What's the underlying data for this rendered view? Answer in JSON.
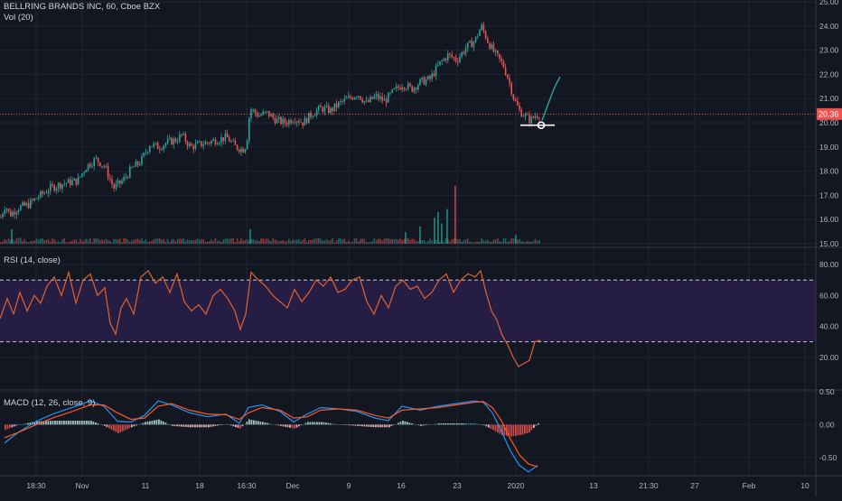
{
  "header": {
    "symbol_title": "BELLRING BRANDS INC, 60, Cboe BZX",
    "volume_label": "Vol (20)",
    "rsi_label": "RSI (14, close)",
    "macd_label": "MACD (12, 26, close, 9)"
  },
  "price_badge": {
    "value": "20.36",
    "color": "#ef5350"
  },
  "colors": {
    "up": "#26a69a",
    "down": "#ef5350",
    "background": "#131722",
    "rsi_line": "#e0632f",
    "rsi_band": "#2a1e4a",
    "macd_line": "#2196f3",
    "signal_line": "#ff5722",
    "grid": "#1f2433",
    "drawing": "#26a69a"
  },
  "chart_data": [
    {
      "type": "candlestick",
      "title": "BELLRING BRANDS INC, 60, Cboe BZX",
      "ylim": [
        15,
        25
      ],
      "y_ticks": [
        "25.00",
        "24.00",
        "23.00",
        "22.00",
        "21.00",
        "20.00",
        "19.00",
        "18.00",
        "17.00",
        "16.00",
        "15.00"
      ],
      "close_anchors": [
        {
          "x": 0,
          "y": 16.1
        },
        {
          "x": 5,
          "y": 16.6
        },
        {
          "x": 10,
          "y": 16.2
        },
        {
          "x": 20,
          "y": 16.5
        },
        {
          "x": 30,
          "y": 16.6
        },
        {
          "x": 40,
          "y": 16.9
        },
        {
          "x": 55,
          "y": 17.3
        },
        {
          "x": 70,
          "y": 17.5
        },
        {
          "x": 85,
          "y": 17.6
        },
        {
          "x": 95,
          "y": 18.2
        },
        {
          "x": 105,
          "y": 18.5
        },
        {
          "x": 115,
          "y": 18.2
        },
        {
          "x": 125,
          "y": 17.3
        },
        {
          "x": 135,
          "y": 17.6
        },
        {
          "x": 145,
          "y": 18.1
        },
        {
          "x": 155,
          "y": 18.4
        },
        {
          "x": 165,
          "y": 19.1
        },
        {
          "x": 175,
          "y": 19.0
        },
        {
          "x": 185,
          "y": 19.2
        },
        {
          "x": 195,
          "y": 19.3
        },
        {
          "x": 200,
          "y": 19.5
        },
        {
          "x": 210,
          "y": 19.0
        },
        {
          "x": 220,
          "y": 19.1
        },
        {
          "x": 230,
          "y": 19.2
        },
        {
          "x": 240,
          "y": 19.3
        },
        {
          "x": 250,
          "y": 19.4
        },
        {
          "x": 260,
          "y": 19.0
        },
        {
          "x": 268,
          "y": 18.9
        },
        {
          "x": 272,
          "y": 19.1
        },
        {
          "x": 276,
          "y": 20.6
        },
        {
          "x": 285,
          "y": 20.3
        },
        {
          "x": 295,
          "y": 20.4
        },
        {
          "x": 305,
          "y": 20.1
        },
        {
          "x": 315,
          "y": 20.0
        },
        {
          "x": 325,
          "y": 20.2
        },
        {
          "x": 335,
          "y": 20.0
        },
        {
          "x": 345,
          "y": 20.4
        },
        {
          "x": 355,
          "y": 20.6
        },
        {
          "x": 365,
          "y": 20.5
        },
        {
          "x": 375,
          "y": 20.8
        },
        {
          "x": 385,
          "y": 21.0
        },
        {
          "x": 395,
          "y": 21.2
        },
        {
          "x": 405,
          "y": 20.8
        },
        {
          "x": 415,
          "y": 21.1
        },
        {
          "x": 425,
          "y": 20.9
        },
        {
          "x": 435,
          "y": 21.3
        },
        {
          "x": 445,
          "y": 21.6
        },
        {
          "x": 455,
          "y": 21.4
        },
        {
          "x": 465,
          "y": 21.7
        },
        {
          "x": 475,
          "y": 21.8
        },
        {
          "x": 485,
          "y": 22.4
        },
        {
          "x": 495,
          "y": 22.8
        },
        {
          "x": 505,
          "y": 22.6
        },
        {
          "x": 515,
          "y": 23.1
        },
        {
          "x": 525,
          "y": 23.4
        },
        {
          "x": 532,
          "y": 24.0
        },
        {
          "x": 540,
          "y": 23.3
        },
        {
          "x": 548,
          "y": 22.8
        },
        {
          "x": 556,
          "y": 22.4
        },
        {
          "x": 562,
          "y": 21.8
        },
        {
          "x": 568,
          "y": 21.0
        },
        {
          "x": 574,
          "y": 20.5
        },
        {
          "x": 580,
          "y": 20.3
        },
        {
          "x": 586,
          "y": 20.1
        },
        {
          "x": 592,
          "y": 20.3
        },
        {
          "x": 598,
          "y": 20.36
        }
      ]
    },
    {
      "type": "bar",
      "title": "Vol (20)",
      "spikes": [
        {
          "x": 480,
          "h": 0.45
        },
        {
          "x": 484,
          "h": 0.55
        },
        {
          "x": 488,
          "h": 0.35
        },
        {
          "x": 494,
          "h": 0.6
        },
        {
          "x": 503,
          "h": 1.0
        },
        {
          "x": 464,
          "h": 0.3
        },
        {
          "x": 448,
          "h": 0.2
        },
        {
          "x": 570,
          "h": 0.15
        },
        {
          "x": 12,
          "h": 0.25
        },
        {
          "x": 276,
          "h": 0.25
        }
      ]
    },
    {
      "type": "line",
      "title": "RSI (14, close)",
      "ylim": [
        0,
        90
      ],
      "y_ticks": [
        "80.00",
        "60.00",
        "40.00",
        "20.00"
      ],
      "overbought": 70,
      "oversold": 30,
      "points": [
        {
          "x": 0,
          "y": 45
        },
        {
          "x": 8,
          "y": 58
        },
        {
          "x": 15,
          "y": 48
        },
        {
          "x": 22,
          "y": 62
        },
        {
          "x": 30,
          "y": 50
        },
        {
          "x": 38,
          "y": 60
        },
        {
          "x": 45,
          "y": 55
        },
        {
          "x": 52,
          "y": 66
        },
        {
          "x": 60,
          "y": 72
        },
        {
          "x": 68,
          "y": 60
        },
        {
          "x": 76,
          "y": 75
        },
        {
          "x": 84,
          "y": 55
        },
        {
          "x": 92,
          "y": 70
        },
        {
          "x": 100,
          "y": 74
        },
        {
          "x": 108,
          "y": 60
        },
        {
          "x": 116,
          "y": 65
        },
        {
          "x": 122,
          "y": 42
        },
        {
          "x": 128,
          "y": 35
        },
        {
          "x": 134,
          "y": 52
        },
        {
          "x": 140,
          "y": 58
        },
        {
          "x": 148,
          "y": 48
        },
        {
          "x": 156,
          "y": 72
        },
        {
          "x": 164,
          "y": 76
        },
        {
          "x": 172,
          "y": 68
        },
        {
          "x": 180,
          "y": 72
        },
        {
          "x": 188,
          "y": 62
        },
        {
          "x": 196,
          "y": 74
        },
        {
          "x": 204,
          "y": 56
        },
        {
          "x": 212,
          "y": 50
        },
        {
          "x": 220,
          "y": 54
        },
        {
          "x": 228,
          "y": 48
        },
        {
          "x": 236,
          "y": 60
        },
        {
          "x": 244,
          "y": 64
        },
        {
          "x": 252,
          "y": 58
        },
        {
          "x": 260,
          "y": 50
        },
        {
          "x": 266,
          "y": 38
        },
        {
          "x": 272,
          "y": 48
        },
        {
          "x": 278,
          "y": 75
        },
        {
          "x": 286,
          "y": 70
        },
        {
          "x": 294,
          "y": 66
        },
        {
          "x": 302,
          "y": 60
        },
        {
          "x": 310,
          "y": 56
        },
        {
          "x": 318,
          "y": 52
        },
        {
          "x": 326,
          "y": 64
        },
        {
          "x": 334,
          "y": 56
        },
        {
          "x": 342,
          "y": 62
        },
        {
          "x": 350,
          "y": 70
        },
        {
          "x": 358,
          "y": 66
        },
        {
          "x": 366,
          "y": 72
        },
        {
          "x": 374,
          "y": 62
        },
        {
          "x": 382,
          "y": 64
        },
        {
          "x": 390,
          "y": 70
        },
        {
          "x": 398,
          "y": 72
        },
        {
          "x": 406,
          "y": 56
        },
        {
          "x": 414,
          "y": 48
        },
        {
          "x": 422,
          "y": 60
        },
        {
          "x": 430,
          "y": 52
        },
        {
          "x": 438,
          "y": 66
        },
        {
          "x": 446,
          "y": 70
        },
        {
          "x": 454,
          "y": 64
        },
        {
          "x": 462,
          "y": 66
        },
        {
          "x": 470,
          "y": 58
        },
        {
          "x": 478,
          "y": 62
        },
        {
          "x": 486,
          "y": 70
        },
        {
          "x": 494,
          "y": 74
        },
        {
          "x": 502,
          "y": 62
        },
        {
          "x": 510,
          "y": 70
        },
        {
          "x": 518,
          "y": 74
        },
        {
          "x": 526,
          "y": 72
        },
        {
          "x": 532,
          "y": 76
        },
        {
          "x": 538,
          "y": 62
        },
        {
          "x": 544,
          "y": 50
        },
        {
          "x": 550,
          "y": 44
        },
        {
          "x": 556,
          "y": 34
        },
        {
          "x": 562,
          "y": 28
        },
        {
          "x": 568,
          "y": 20
        },
        {
          "x": 574,
          "y": 14
        },
        {
          "x": 580,
          "y": 16
        },
        {
          "x": 586,
          "y": 18
        },
        {
          "x": 592,
          "y": 30
        },
        {
          "x": 598,
          "y": 31
        }
      ]
    },
    {
      "type": "line",
      "title": "MACD (12, 26, close, 9)",
      "ylim": [
        -0.75,
        0.5
      ],
      "y_ticks": [
        "0.50",
        "0.00",
        "-0.50"
      ],
      "macd_points": [
        {
          "x": 5,
          "y": -0.28
        },
        {
          "x": 20,
          "y": -0.12
        },
        {
          "x": 40,
          "y": 0.05
        },
        {
          "x": 60,
          "y": 0.17
        },
        {
          "x": 80,
          "y": 0.26
        },
        {
          "x": 100,
          "y": 0.36
        },
        {
          "x": 115,
          "y": 0.28
        },
        {
          "x": 130,
          "y": 0.05
        },
        {
          "x": 145,
          "y": 0.04
        },
        {
          "x": 160,
          "y": 0.14
        },
        {
          "x": 175,
          "y": 0.36
        },
        {
          "x": 190,
          "y": 0.3
        },
        {
          "x": 210,
          "y": 0.18
        },
        {
          "x": 230,
          "y": 0.12
        },
        {
          "x": 250,
          "y": 0.16
        },
        {
          "x": 265,
          "y": 0.02
        },
        {
          "x": 275,
          "y": 0.26
        },
        {
          "x": 290,
          "y": 0.3
        },
        {
          "x": 310,
          "y": 0.2
        },
        {
          "x": 325,
          "y": 0.04
        },
        {
          "x": 340,
          "y": 0.16
        },
        {
          "x": 355,
          "y": 0.26
        },
        {
          "x": 375,
          "y": 0.24
        },
        {
          "x": 395,
          "y": 0.2
        },
        {
          "x": 415,
          "y": 0.1
        },
        {
          "x": 430,
          "y": 0.06
        },
        {
          "x": 445,
          "y": 0.28
        },
        {
          "x": 465,
          "y": 0.22
        },
        {
          "x": 485,
          "y": 0.28
        },
        {
          "x": 505,
          "y": 0.32
        },
        {
          "x": 525,
          "y": 0.36
        },
        {
          "x": 535,
          "y": 0.34
        },
        {
          "x": 545,
          "y": 0.18
        },
        {
          "x": 555,
          "y": -0.1
        },
        {
          "x": 565,
          "y": -0.4
        },
        {
          "x": 575,
          "y": -0.62
        },
        {
          "x": 585,
          "y": -0.72
        },
        {
          "x": 595,
          "y": -0.62
        }
      ],
      "signal_points": [
        {
          "x": 5,
          "y": -0.2
        },
        {
          "x": 20,
          "y": -0.12
        },
        {
          "x": 40,
          "y": 0.0
        },
        {
          "x": 60,
          "y": 0.11
        },
        {
          "x": 80,
          "y": 0.2
        },
        {
          "x": 100,
          "y": 0.3
        },
        {
          "x": 115,
          "y": 0.3
        },
        {
          "x": 130,
          "y": 0.18
        },
        {
          "x": 145,
          "y": 0.08
        },
        {
          "x": 160,
          "y": 0.1
        },
        {
          "x": 175,
          "y": 0.28
        },
        {
          "x": 190,
          "y": 0.32
        },
        {
          "x": 210,
          "y": 0.22
        },
        {
          "x": 230,
          "y": 0.16
        },
        {
          "x": 250,
          "y": 0.15
        },
        {
          "x": 265,
          "y": 0.08
        },
        {
          "x": 275,
          "y": 0.18
        },
        {
          "x": 290,
          "y": 0.26
        },
        {
          "x": 310,
          "y": 0.22
        },
        {
          "x": 325,
          "y": 0.1
        },
        {
          "x": 340,
          "y": 0.12
        },
        {
          "x": 355,
          "y": 0.22
        },
        {
          "x": 375,
          "y": 0.24
        },
        {
          "x": 395,
          "y": 0.22
        },
        {
          "x": 415,
          "y": 0.14
        },
        {
          "x": 430,
          "y": 0.1
        },
        {
          "x": 445,
          "y": 0.22
        },
        {
          "x": 465,
          "y": 0.24
        },
        {
          "x": 485,
          "y": 0.26
        },
        {
          "x": 505,
          "y": 0.3
        },
        {
          "x": 525,
          "y": 0.34
        },
        {
          "x": 535,
          "y": 0.35
        },
        {
          "x": 545,
          "y": 0.26
        },
        {
          "x": 555,
          "y": 0.06
        },
        {
          "x": 565,
          "y": -0.22
        },
        {
          "x": 575,
          "y": -0.46
        },
        {
          "x": 585,
          "y": -0.6
        },
        {
          "x": 595,
          "y": -0.64
        }
      ]
    }
  ],
  "x_axis": {
    "labels": [
      {
        "x": 40,
        "text": "18:30"
      },
      {
        "x": 91,
        "text": "Nov"
      },
      {
        "x": 161,
        "text": "11"
      },
      {
        "x": 221,
        "text": "18"
      },
      {
        "x": 273,
        "text": "16:30"
      },
      {
        "x": 324,
        "text": "Dec"
      },
      {
        "x": 386,
        "text": "9"
      },
      {
        "x": 444,
        "text": "16"
      },
      {
        "x": 506,
        "text": "23"
      },
      {
        "x": 571,
        "text": "2020"
      },
      {
        "x": 657,
        "text": "13"
      },
      {
        "x": 718,
        "text": "21:30"
      },
      {
        "x": 769,
        "text": "27"
      },
      {
        "x": 829,
        "text": "Feb"
      },
      {
        "x": 891,
        "text": "10"
      }
    ]
  }
}
